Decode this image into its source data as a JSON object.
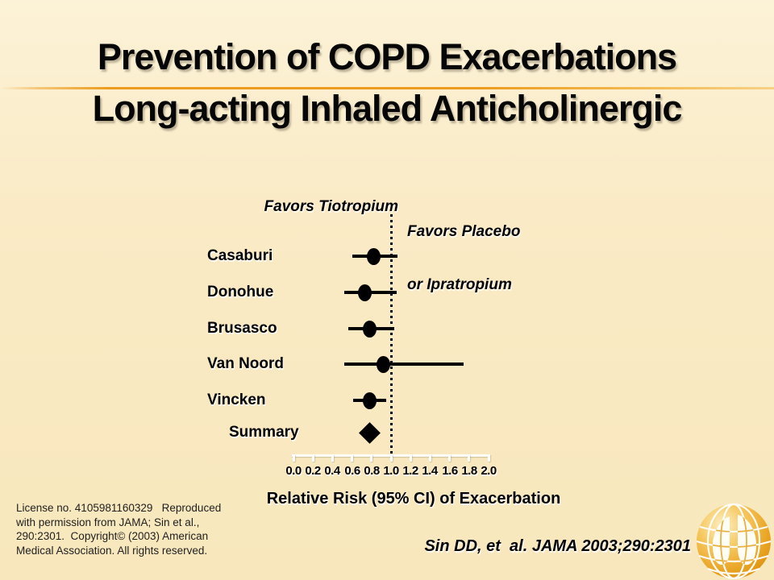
{
  "slide": {
    "title_line1": "Prevention of COPD Exacerbations",
    "title_line2": "Long-acting Inhaled Anticholinergic"
  },
  "chart_data": {
    "type": "scatter",
    "subtype": "forest-plot",
    "xlabel": "Relative Risk (95% CI) of Exacerbation",
    "xlim": [
      0.0,
      2.0
    ],
    "x_ticks": [
      "0.0",
      "0.2",
      "0.4",
      "0.6",
      "0.8",
      "1.0",
      "1.2",
      "1.4",
      "1.6",
      "1.8",
      "2.0"
    ],
    "reference_line_x": 1.0,
    "reference_line_style": "dotted",
    "grid": false,
    "annotations": {
      "favors_left": "Favors Tiotropium",
      "favors_right_line1": "Favors Placebo",
      "favors_right_line2": "or Ipratropium"
    },
    "studies": [
      {
        "name": "Casaburi",
        "rr": 0.82,
        "ci_low": 0.6,
        "ci_high": 1.06,
        "marker": "circle"
      },
      {
        "name": "Donohue",
        "rr": 0.73,
        "ci_low": 0.52,
        "ci_high": 1.06,
        "marker": "circle"
      },
      {
        "name": "Brusasco",
        "rr": 0.78,
        "ci_low": 0.56,
        "ci_high": 1.03,
        "marker": "circle"
      },
      {
        "name": "Van Noord",
        "rr": 0.92,
        "ci_low": 0.52,
        "ci_high": 1.74,
        "marker": "circle"
      },
      {
        "name": "Vincken",
        "rr": 0.78,
        "ci_low": 0.61,
        "ci_high": 0.95,
        "marker": "circle"
      },
      {
        "name": "Summary",
        "rr": 0.78,
        "ci_low": null,
        "ci_high": null,
        "marker": "diamond"
      }
    ]
  },
  "footer": {
    "license_lines": [
      "License no. 4105981160329   Reproduced",
      "with permission from JAMA; Sin et al.,",
      "290:2301.  Copyright© (2003) American",
      "Medical Association. All rights reserved."
    ],
    "citation": "Sin DD, et  al. JAMA 2003;290:2301"
  },
  "logo": {
    "name": "lung-globe-logo"
  },
  "colors": {
    "background": "#FAEBC6",
    "accent_rule": "#ED9C1E",
    "axis": "#FFFFFF",
    "data": "#000000",
    "logo_orange": "#E9A424"
  }
}
